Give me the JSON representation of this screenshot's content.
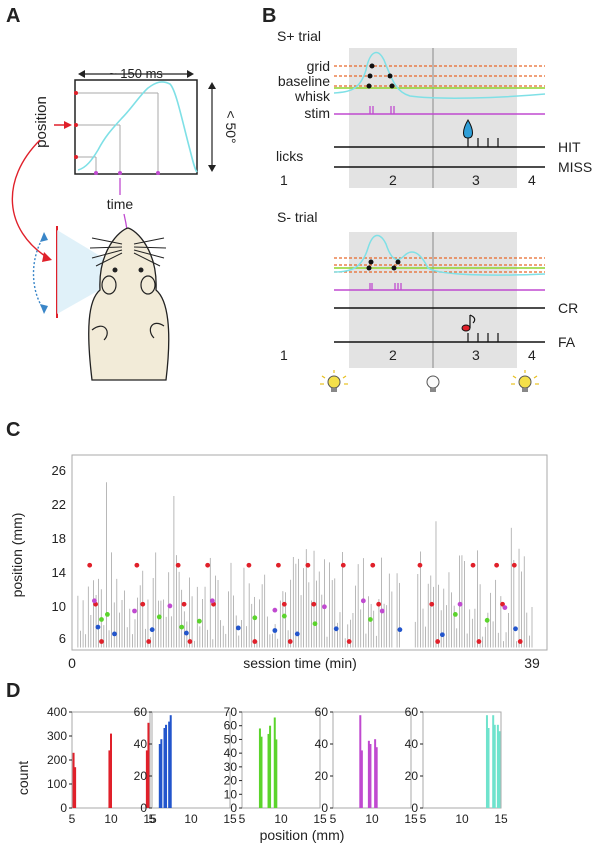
{
  "panels": {
    "a": "A",
    "b": "B",
    "c": "C",
    "d": "D"
  },
  "panel_a": {
    "duration_label": "~ 150 ms",
    "angle_label": "< 50°",
    "position_label": "position",
    "time_label": "time"
  },
  "panel_b": {
    "splus_title": "S+ trial",
    "sminus_title": "S- trial",
    "grid_label": "grid",
    "baseline_label": "baseline",
    "whisk_label": "whisk",
    "stim_label": "stim",
    "licks_label": "licks",
    "hit_label": "HIT",
    "miss_label": "MISS",
    "cr_label": "CR",
    "fa_label": "FA",
    "epochs": [
      "1",
      "2",
      "3",
      "4"
    ]
  },
  "panel_c": {
    "ylabel": "position (mm)",
    "xlabel": "session time (min)",
    "yticks": [
      "26",
      "22",
      "18",
      "14",
      "10",
      "6"
    ],
    "x_start": "0",
    "x_end": "39"
  },
  "panel_d": {
    "ylabel": "count",
    "xlabel": "position (mm)",
    "xticks": [
      "5",
      "10",
      "15"
    ]
  },
  "colors": {
    "grid": "#e8692a",
    "baseline": "#8fd42c",
    "whisk": "#7fe0e6",
    "stim": "#c04ad0",
    "red": "#e0202a",
    "blue": "#2255cc",
    "green": "#5bd42c",
    "magenta": "#c04ad0",
    "teal": "#6fe3cd",
    "shade": "#e3e3e3"
  },
  "chart_data": [
    {
      "type": "scatter",
      "title": "",
      "xlabel": "session time (min)",
      "ylabel": "position (mm)",
      "xlim": [
        0,
        39
      ],
      "ylim": [
        5,
        28
      ],
      "series": [
        {
          "color": "red",
          "x": [
            1.5,
            2,
            2.5,
            5.5,
            6,
            6.5,
            9,
            9.5,
            10,
            11.5,
            12,
            15,
            15.5,
            17.5,
            18,
            18.5,
            20,
            20.5,
            23,
            23.5,
            25.5,
            26,
            29.5,
            30.5,
            31,
            34,
            34.5,
            36,
            36.5,
            37.5,
            38
          ],
          "y": [
            15,
            10.4,
            6,
            15,
            10.4,
            6,
            15,
            10.4,
            6,
            15,
            10.4,
            15,
            6,
            15,
            10.4,
            6,
            15,
            10.4,
            15,
            6,
            15,
            10.4,
            15,
            10.4,
            6,
            15,
            6,
            15,
            10.4,
            15,
            6
          ]
        },
        {
          "color": "blue",
          "x": [
            2.2,
            3.6,
            6.8,
            9.7,
            14.1,
            17.2,
            19.1,
            22.4,
            27.8,
            31.4,
            37.6
          ],
          "y": [
            7.7,
            6.9,
            7.4,
            7.0,
            7.6,
            7.3,
            6.9,
            7.5,
            7.4,
            6.8,
            7.5
          ]
        },
        {
          "color": "green",
          "x": [
            2.5,
            3.0,
            7.4,
            9.3,
            10.8,
            15.5,
            18.0,
            20.6,
            25.3,
            32.5,
            35.2
          ],
          "y": [
            8.6,
            9.2,
            8.9,
            7.7,
            8.4,
            8.8,
            9.0,
            8.1,
            8.6,
            9.2,
            8.5
          ]
        },
        {
          "color": "magenta",
          "x": [
            1.9,
            5.3,
            8.3,
            11.9,
            17.2,
            21.4,
            24.7,
            26.3,
            32.9,
            36.7
          ],
          "y": [
            10.8,
            9.6,
            10.2,
            10.8,
            9.7,
            10.1,
            10.8,
            9.6,
            10.4,
            10.0
          ]
        }
      ]
    },
    {
      "type": "bar",
      "title": "",
      "xlabel": "position (mm)",
      "ylabel": "count",
      "subplots": [
        {
          "color": "red",
          "ylim": [
            0,
            400
          ],
          "yticks": [
            0,
            100,
            200,
            300,
            400
          ],
          "x": [
            5.2,
            5.4,
            9.8,
            10.0,
            14.6,
            14.8
          ],
          "values": [
            230,
            170,
            240,
            310,
            240,
            355
          ]
        },
        {
          "color": "blue",
          "ylim": [
            0,
            60
          ],
          "yticks": [
            0,
            20,
            40,
            60
          ],
          "x": [
            6.0,
            6.2,
            6.6,
            6.8,
            7.2,
            7.4
          ],
          "values": [
            40,
            43,
            50,
            52,
            54,
            58
          ]
        },
        {
          "color": "green",
          "ylim": [
            0,
            70
          ],
          "yticks": [
            0,
            10,
            20,
            30,
            40,
            50,
            60,
            70
          ],
          "x": [
            7.3,
            7.5,
            8.4,
            8.6,
            9.2,
            9.4
          ],
          "values": [
            58,
            52,
            54,
            60,
            66,
            50
          ]
        },
        {
          "color": "magenta",
          "ylim": [
            0,
            60
          ],
          "yticks": [
            0,
            20,
            40,
            60
          ],
          "x": [
            8.5,
            8.7,
            9.6,
            9.8,
            10.4,
            10.6
          ],
          "values": [
            58,
            36,
            42,
            40,
            43,
            38
          ]
        },
        {
          "color": "teal",
          "ylim": [
            0,
            60
          ],
          "yticks": [
            0,
            20,
            40,
            60
          ],
          "x": [
            13.2,
            13.4,
            14.0,
            14.2,
            14.6,
            14.8
          ],
          "values": [
            58,
            50,
            58,
            52,
            52,
            48
          ]
        }
      ]
    }
  ]
}
